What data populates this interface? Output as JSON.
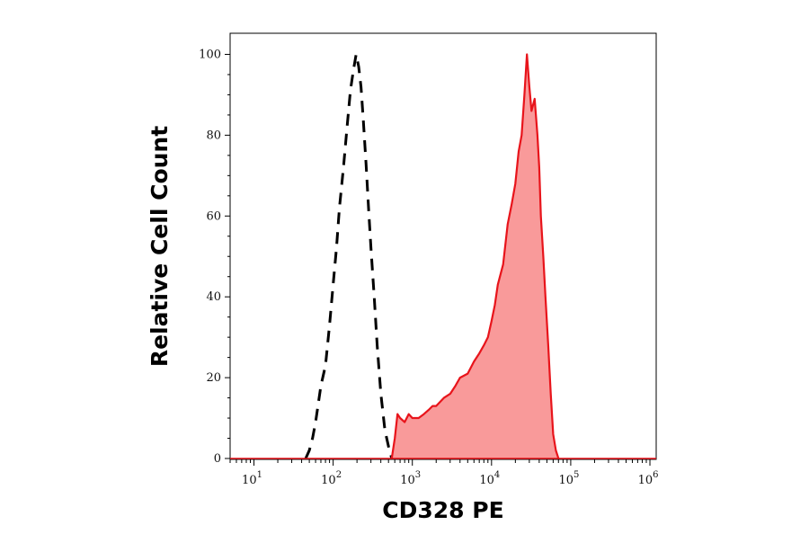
{
  "chart_data": {
    "type": "area",
    "title": "",
    "xlabel": "CD328 PE",
    "ylabel": "Relative Cell Count",
    "x_scale": "log",
    "xlim": [
      5,
      1200000
    ],
    "ylim": [
      0,
      105
    ],
    "x_ticks": [
      {
        "value": 10,
        "base": "10",
        "exp": "1"
      },
      {
        "value": 100,
        "base": "10",
        "exp": "2"
      },
      {
        "value": 1000,
        "base": "10",
        "exp": "3"
      },
      {
        "value": 10000,
        "base": "10",
        "exp": "4"
      },
      {
        "value": 100000,
        "base": "10",
        "exp": "5"
      },
      {
        "value": 1000000,
        "base": "10",
        "exp": "6"
      }
    ],
    "y_ticks": [
      0,
      20,
      40,
      60,
      80,
      100
    ],
    "grid": false,
    "legend": "none",
    "series": [
      {
        "style": "dashed",
        "color": "#000000",
        "points": [
          [
            45,
            0
          ],
          [
            50,
            2
          ],
          [
            55,
            5
          ],
          [
            60,
            9
          ],
          [
            70,
            18
          ],
          [
            80,
            23
          ],
          [
            90,
            33
          ],
          [
            100,
            43
          ],
          [
            110,
            52
          ],
          [
            120,
            62
          ],
          [
            135,
            72
          ],
          [
            150,
            82
          ],
          [
            165,
            91
          ],
          [
            180,
            96
          ],
          [
            195,
            100
          ],
          [
            210,
            97
          ],
          [
            225,
            92
          ],
          [
            240,
            84
          ],
          [
            260,
            73
          ],
          [
            280,
            62
          ],
          [
            300,
            52
          ],
          [
            330,
            40
          ],
          [
            360,
            28
          ],
          [
            400,
            16
          ],
          [
            450,
            7
          ],
          [
            500,
            3
          ],
          [
            550,
            0
          ]
        ]
      },
      {
        "style": "filled",
        "color": "#e8141b",
        "fill": "#f99a9a",
        "points": [
          [
            550,
            0
          ],
          [
            600,
            5
          ],
          [
            650,
            11
          ],
          [
            700,
            10
          ],
          [
            800,
            9
          ],
          [
            900,
            11
          ],
          [
            1000,
            10
          ],
          [
            1200,
            10
          ],
          [
            1400,
            11
          ],
          [
            1600,
            12
          ],
          [
            1800,
            13
          ],
          [
            2000,
            13
          ],
          [
            2500,
            15
          ],
          [
            3000,
            16
          ],
          [
            3500,
            18
          ],
          [
            4000,
            20
          ],
          [
            5000,
            21
          ],
          [
            6000,
            24
          ],
          [
            7000,
            26
          ],
          [
            8000,
            28
          ],
          [
            9000,
            30
          ],
          [
            10000,
            34
          ],
          [
            11000,
            38
          ],
          [
            12000,
            43
          ],
          [
            14000,
            48
          ],
          [
            16000,
            58
          ],
          [
            18000,
            63
          ],
          [
            20000,
            68
          ],
          [
            22000,
            76
          ],
          [
            24000,
            80
          ],
          [
            26000,
            90
          ],
          [
            28000,
            100
          ],
          [
            30000,
            92
          ],
          [
            32000,
            86
          ],
          [
            35000,
            89
          ],
          [
            38000,
            80
          ],
          [
            40000,
            72
          ],
          [
            42000,
            60
          ],
          [
            45000,
            50
          ],
          [
            48000,
            40
          ],
          [
            52000,
            28
          ],
          [
            56000,
            16
          ],
          [
            60000,
            6
          ],
          [
            65000,
            2
          ],
          [
            70000,
            0
          ]
        ]
      }
    ]
  }
}
